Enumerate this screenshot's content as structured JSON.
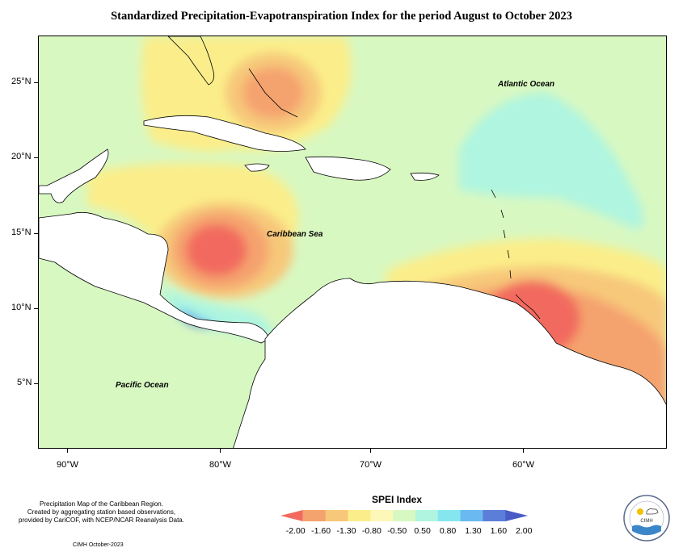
{
  "title": "Standardized Precipitation-Evapotranspiration Index for the period August to October 2023",
  "map": {
    "lat_labels": [
      "25°N",
      "20°N",
      "15°N",
      "10°N",
      "5°N"
    ],
    "lon_labels": [
      "90°W",
      "80°W",
      "70°W",
      "60°W"
    ],
    "region_labels": {
      "atlantic": "Atlantic Ocean",
      "caribbean": "Caribbean Sea",
      "pacific": "Pacific Ocean"
    }
  },
  "legend": {
    "title": "SPEI Index",
    "labels": [
      "-2.00",
      "-1.60",
      "-1.30",
      "-0.80",
      "-0.50",
      "0.50",
      "0.80",
      "1.30",
      "1.60",
      "2.00"
    ],
    "colors": [
      "#f26a5e",
      "#f5a36e",
      "#f7c87a",
      "#fbee8a",
      "#fdf7b8",
      "#d8f8c2",
      "#aff5e0",
      "#86e6f0",
      "#6ab9f0",
      "#5b7fd8",
      "#4a5bc8"
    ]
  },
  "notes": {
    "line1": "Precipitation Map of the Caribbean Region.",
    "line2": "Created by aggregating station based observations,",
    "line3": "provided by CariCOF, with NCEP/NCAR Reanalysis Data.",
    "credit": "CIMH October-2023"
  },
  "logo": {
    "text": "CIMH"
  }
}
